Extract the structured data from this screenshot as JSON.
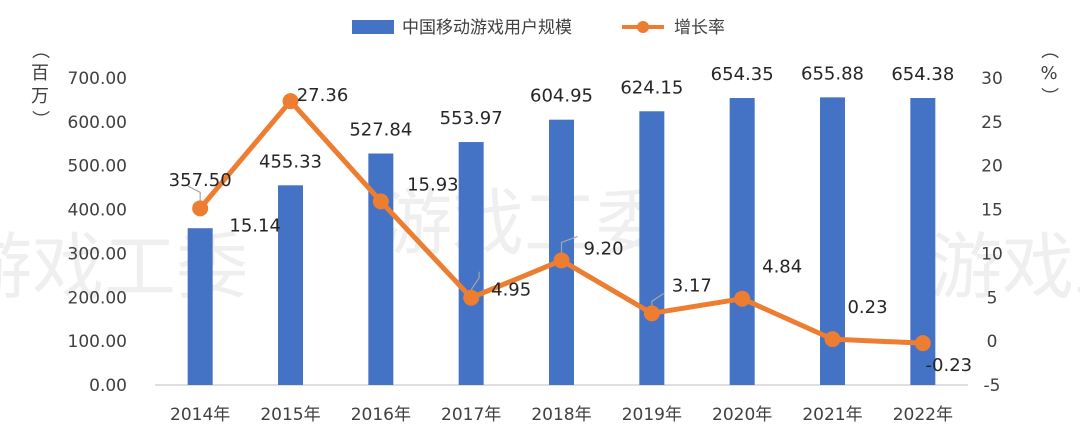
{
  "watermark": "游戏工委",
  "legend": {
    "bar_label": "中国移动游戏用户规模",
    "line_label": "增长率"
  },
  "units": {
    "left": [
      "（",
      "百",
      "万",
      "）"
    ],
    "right": [
      "（",
      "%",
      "）"
    ]
  },
  "colors": {
    "bar": "#4472C4",
    "line": "#ED7D31",
    "axis": "#BFBFBF",
    "text": "#404040"
  },
  "chart_data": {
    "type": "bar+line",
    "categories": [
      "2014年",
      "2015年",
      "2016年",
      "2017年",
      "2018年",
      "2019年",
      "2020年",
      "2021年",
      "2022年"
    ],
    "series": [
      {
        "name": "中国移动游戏用户规模",
        "type": "bar",
        "axis": "left",
        "values": [
          357.5,
          455.33,
          527.84,
          553.97,
          604.95,
          624.15,
          654.35,
          655.88,
          654.38
        ],
        "labels": [
          "357.50",
          "455.33",
          "527.84",
          "553.97",
          "604.95",
          "624.15",
          "654.35",
          "655.88",
          "654.38"
        ]
      },
      {
        "name": "增长率",
        "type": "line",
        "axis": "right",
        "values": [
          15.14,
          27.36,
          15.93,
          4.95,
          9.2,
          3.17,
          4.84,
          0.23,
          -0.23
        ],
        "labels": [
          "15.14",
          "27.36",
          "15.93",
          "4.95",
          "9.20",
          "3.17",
          "4.84",
          "0.23",
          "-0.23"
        ]
      }
    ],
    "left_axis": {
      "ylim": [
        0,
        700
      ],
      "ticks": [
        "0.00",
        "100.00",
        "200.00",
        "300.00",
        "400.00",
        "500.00",
        "600.00",
        "700.00"
      ]
    },
    "right_axis": {
      "ylim": [
        -5,
        30
      ],
      "ticks": [
        "-5",
        "0",
        "5",
        "10",
        "15",
        "20",
        "25",
        "30"
      ]
    },
    "legend_position": "top-center",
    "grid": false
  }
}
